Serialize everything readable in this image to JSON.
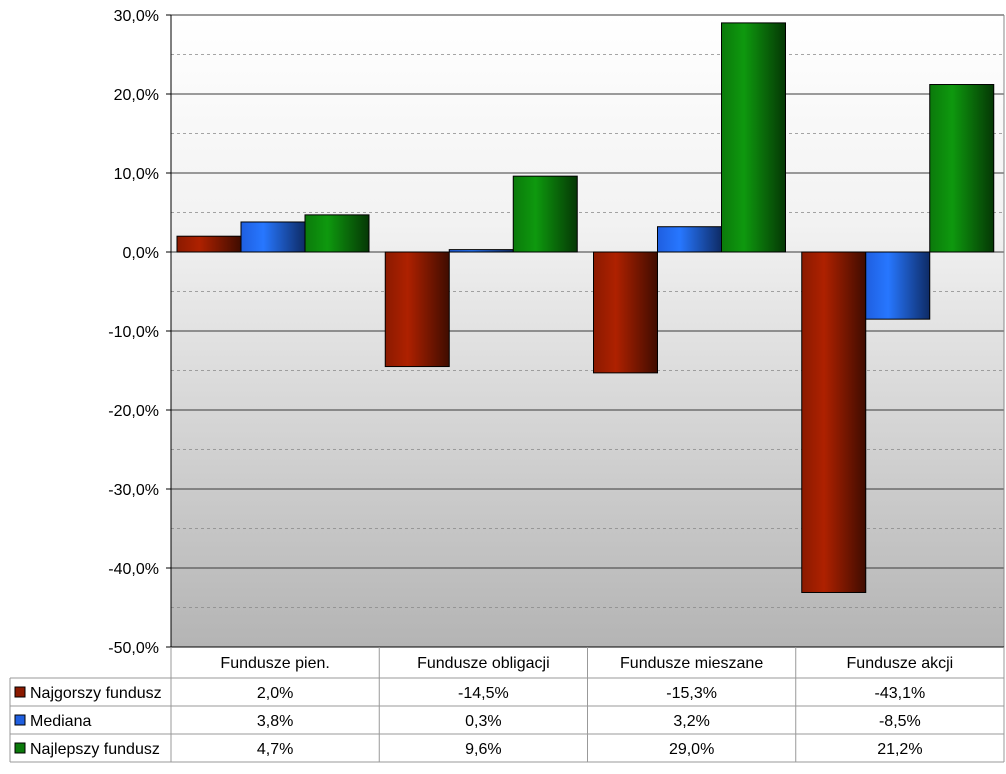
{
  "chart_data": {
    "type": "bar",
    "categories": [
      "Fundusze pien.",
      "Fundusze obligacji",
      "Fundusze mieszane",
      "Fundusze akcji"
    ],
    "series": [
      {
        "name": "Najgorszy fundusz",
        "values": [
          2.0,
          -14.5,
          -15.3,
          -43.1
        ],
        "labels": [
          "2,0%",
          "-14,5%",
          "-15,3%",
          "-43,1%"
        ],
        "color": "#8b1a00"
      },
      {
        "name": "Mediana",
        "values": [
          3.8,
          0.3,
          3.2,
          -8.5
        ],
        "labels": [
          "3,8%",
          "0,3%",
          "3,2%",
          "-8,5%"
        ],
        "color": "#1f5fe0"
      },
      {
        "name": "Najlepszy fundusz",
        "values": [
          4.7,
          9.6,
          29.0,
          21.2
        ],
        "labels": [
          "4,7%",
          "9,6%",
          "29,0%",
          "21,2%"
        ],
        "color": "#0b7a0b"
      }
    ],
    "ylim": [
      -50,
      30
    ],
    "y_ticks": [
      30,
      20,
      10,
      0,
      -10,
      -20,
      -30,
      -40,
      -50
    ],
    "y_tick_labels": [
      "30,0%",
      "20,0%",
      "10,0%",
      "0,0%",
      "-10,0%",
      "-20,0%",
      "-30,0%",
      "-40,0%",
      "-50,0%"
    ],
    "grid": "major solid, minor dashed",
    "legend": "data table below chart",
    "title": "",
    "xlabel": "",
    "ylabel": ""
  }
}
